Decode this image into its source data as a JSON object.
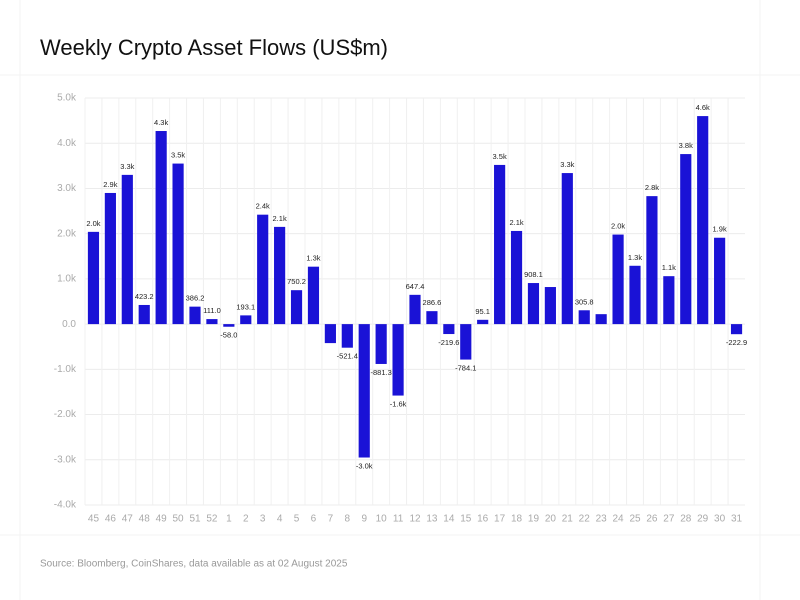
{
  "chart_data": {
    "type": "bar",
    "title": "Weekly Crypto Asset Flows (US$m)",
    "source": "Source: Bloomberg, CoinShares, data available as at 02 August 2025",
    "categories": [
      "45",
      "46",
      "47",
      "48",
      "49",
      "50",
      "51",
      "52",
      "1",
      "2",
      "3",
      "4",
      "5",
      "6",
      "7",
      "8",
      "9",
      "10",
      "11",
      "12",
      "13",
      "14",
      "15",
      "16",
      "17",
      "18",
      "19",
      "20",
      "21",
      "22",
      "23",
      "24",
      "25",
      "26",
      "27",
      "28",
      "29",
      "30",
      "31"
    ],
    "values": [
      2040,
      2900,
      3300,
      423.2,
      4270,
      3550,
      386.2,
      111.0,
      -58.0,
      193.1,
      2420,
      2150,
      750.2,
      1270,
      -420,
      -521.4,
      -2950,
      -881.3,
      -1580,
      647.4,
      286.6,
      -219.6,
      -784.1,
      95.1,
      3520,
      2060,
      908.1,
      820,
      3340,
      305.8,
      220,
      1980,
      1290,
      2830,
      1060,
      3760,
      4600,
      1910,
      -222.9
    ],
    "value_labels": [
      "2.0k",
      "2.9k",
      "3.3k",
      "423.2",
      "4.3k",
      "3.5k",
      "386.2",
      "111.0",
      "-58.0",
      "193.1",
      "2.4k",
      "2.1k",
      "750.2",
      "1.3k",
      null,
      "-521.4",
      "-3.0k",
      "-881.3",
      "-1.6k",
      "647.4",
      "286.6",
      "-219.6",
      "-784.1",
      "95.1",
      "3.5k",
      "2.1k",
      "908.1",
      null,
      "3.3k",
      "305.8",
      null,
      "2.0k",
      "1.3k",
      "2.8k",
      "1.1k",
      "3.8k",
      "4.6k",
      "1.9k",
      "-222.9"
    ],
    "color": "#1a12d6",
    "ylim": [
      -4000,
      5000
    ],
    "yticks": [
      {
        "value": -4000,
        "label": "-4.0k"
      },
      {
        "value": -3000,
        "label": "-3.0k"
      },
      {
        "value": -2000,
        "label": "-2.0k"
      },
      {
        "value": -1000,
        "label": "-1.0k"
      },
      {
        "value": 0,
        "label": "0.0"
      },
      {
        "value": 1000,
        "label": "1.0k"
      },
      {
        "value": 2000,
        "label": "2.0k"
      },
      {
        "value": 3000,
        "label": "3.0k"
      },
      {
        "value": 4000,
        "label": "4.0k"
      },
      {
        "value": 5000,
        "label": "5.0k"
      }
    ],
    "grid": true
  }
}
